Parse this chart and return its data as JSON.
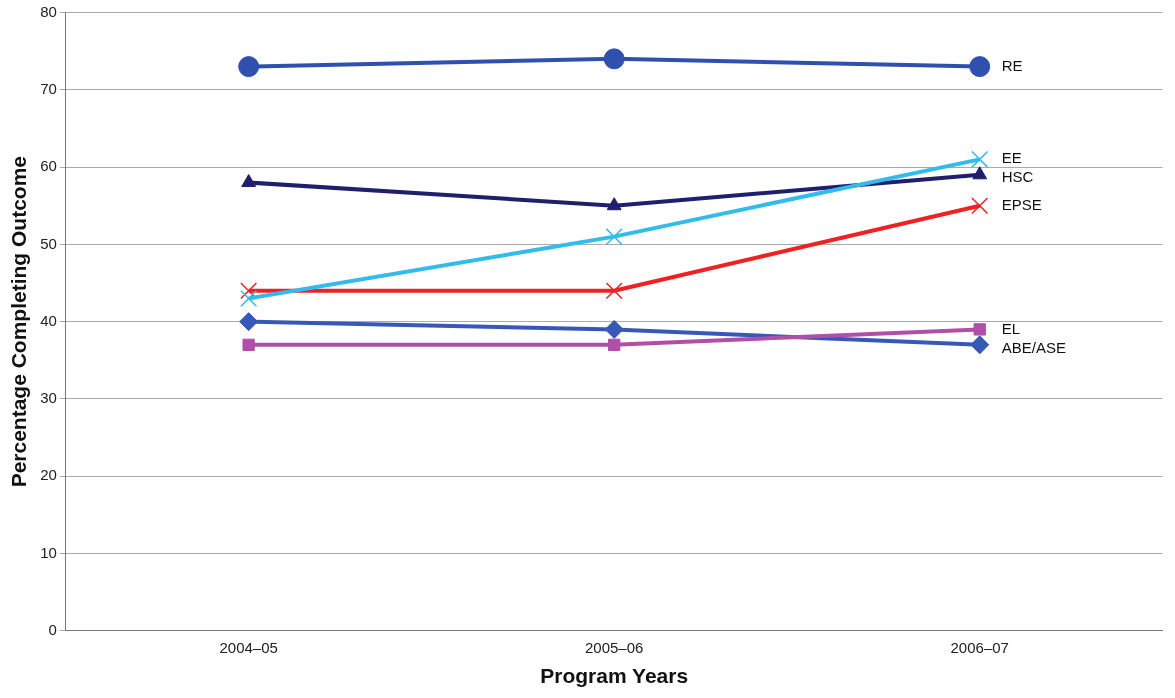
{
  "chart_data": {
    "type": "line",
    "xlabel": "Program Years",
    "ylabel": "Percentage Completing Outcome",
    "categories": [
      "2004–05",
      "2005–06",
      "2006–07"
    ],
    "ylim": [
      0,
      80
    ],
    "yticks": [
      0,
      10,
      20,
      30,
      40,
      50,
      60,
      70,
      80
    ],
    "grid": "y",
    "legend": "right",
    "line_style": "solid",
    "series": [
      {
        "name": "RE",
        "color": "#3050b0",
        "marker": "circle",
        "values": [
          73,
          74,
          73
        ]
      },
      {
        "name": "EE",
        "color": "#33bbee",
        "marker": "cross",
        "values": [
          43,
          51,
          61
        ]
      },
      {
        "name": "HSC",
        "color": "#1f1f6e",
        "marker": "triangle",
        "values": [
          58,
          55,
          59
        ]
      },
      {
        "name": "EPSE",
        "color": "#ee2222",
        "marker": "cross",
        "values": [
          44,
          44,
          55
        ]
      },
      {
        "name": "EL",
        "color": "#b04fa8",
        "marker": "square",
        "values": [
          37,
          37,
          39
        ]
      },
      {
        "name": "ABE/ASE",
        "color": "#3858b8",
        "marker": "diamond",
        "values": [
          40,
          39,
          37
        ]
      }
    ]
  }
}
